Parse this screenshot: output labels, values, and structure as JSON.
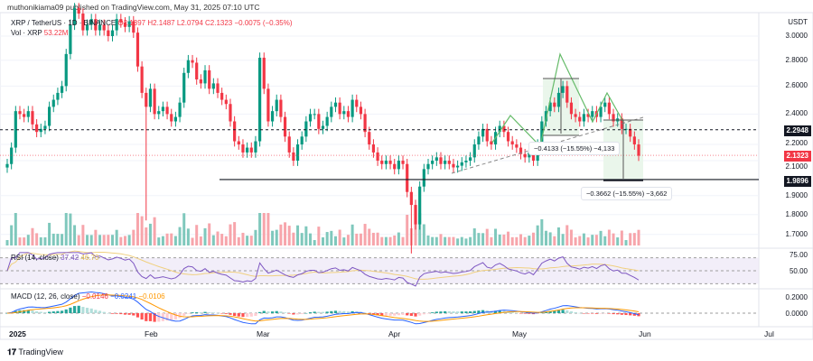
{
  "published": "muthonikiama09 published on TradingView.com, May 31, 2025 07:10 UTC",
  "legend": {
    "symbol": "XRP / TetherUS · 1D · BINANCE",
    "open": "O2.1397",
    "high": "H2.1487",
    "low": "L2.0794",
    "close": "C2.1323",
    "change": "−0.0075 (−0.35%)",
    "volume_label": "Vol · XRP",
    "volume_value": "53.22M"
  },
  "currency": "USDT",
  "price_axis": [
    "3.0000",
    "2.8000",
    "2.6000",
    "2.4000",
    "2.2000",
    "2.1000",
    "1.9000",
    "1.8000",
    "1.7000"
  ],
  "badges": {
    "level_upper": "2.2948",
    "last_price": "2.1323",
    "level_lower": "1.9896"
  },
  "measures": {
    "first": "−0.4133 (−15.55%) −4,133",
    "second": "−0.3662 (−15.55%) −3,662"
  },
  "rsi": {
    "label": "RSI (14, close)",
    "value": "37.42",
    "ma": "46.70",
    "axis": [
      "75.00",
      "50.00"
    ]
  },
  "macd": {
    "label": "MACD (12, 26, close)",
    "hist": "−0.0146",
    "macd": "−0.0241",
    "signal": "−0.0106",
    "axis": [
      "0.2000",
      "0.0000"
    ]
  },
  "dates": [
    "2025",
    "Feb",
    "Mar",
    "Apr",
    "May",
    "Jun",
    "Jul"
  ],
  "footer": "TradingView",
  "colors": {
    "up": "#089981",
    "down": "#f23645",
    "pattern": "#66bb6a",
    "rsi": "#7e57c2",
    "macd": "#2962ff",
    "signal": "#ff9800"
  },
  "chart_data": {
    "type": "candlestick",
    "scale": "log",
    "start_date": "2025-01-01",
    "end_date": "2025-05-31",
    "ylim": [
      1.6,
      3.2
    ],
    "closes": [
      2.08,
      2.18,
      2.42,
      2.4,
      2.38,
      2.42,
      2.33,
      2.28,
      2.3,
      2.32,
      2.45,
      2.5,
      2.55,
      2.6,
      2.85,
      3.1,
      3.25,
      3.2,
      3.05,
      3.1,
      3.15,
      3.05,
      3.1,
      3.05,
      3.0,
      3.05,
      3.15,
      3.12,
      3.08,
      3.13,
      3.03,
      2.75,
      2.55,
      2.45,
      2.58,
      2.4,
      2.42,
      2.45,
      2.4,
      2.35,
      2.38,
      2.48,
      2.7,
      2.8,
      2.78,
      2.65,
      2.62,
      2.72,
      2.58,
      2.62,
      2.55,
      2.5,
      2.47,
      2.35,
      2.22,
      2.2,
      2.15,
      2.18,
      2.15,
      2.22,
      2.82,
      2.58,
      2.35,
      2.42,
      2.5,
      2.38,
      2.25,
      2.15,
      2.1,
      2.2,
      2.25,
      2.35,
      2.4,
      2.4,
      2.3,
      2.32,
      2.38,
      2.45,
      2.48,
      2.4,
      2.42,
      2.38,
      2.5,
      2.45,
      2.4,
      2.28,
      2.2,
      2.15,
      2.1,
      2.08,
      2.1,
      2.08,
      2.05,
      2.1,
      2.08,
      1.92,
      1.85,
      1.75,
      1.95,
      2.05,
      2.08,
      2.1,
      2.12,
      2.08,
      2.1,
      2.08,
      2.06,
      2.07,
      2.09,
      2.1,
      2.12,
      2.2,
      2.25,
      2.3,
      2.22,
      2.2,
      2.28,
      2.32,
      2.28,
      2.22,
      2.2,
      2.18,
      2.14,
      2.12,
      2.15,
      2.1,
      2.2,
      2.35,
      2.42,
      2.48,
      2.45,
      2.55,
      2.6,
      2.48,
      2.4,
      2.38,
      2.35,
      2.4,
      2.38,
      2.42,
      2.38,
      2.45,
      2.48,
      2.4,
      2.35,
      2.37,
      2.3,
      2.3,
      2.25,
      2.2,
      2.13
    ],
    "notable_lows": [
      {
        "date": "2025-02-03",
        "low": 1.77
      },
      {
        "date": "2025-04-07",
        "low": 1.61
      }
    ],
    "horizontal_levels": [
      2.2948,
      1.9896
    ]
  }
}
